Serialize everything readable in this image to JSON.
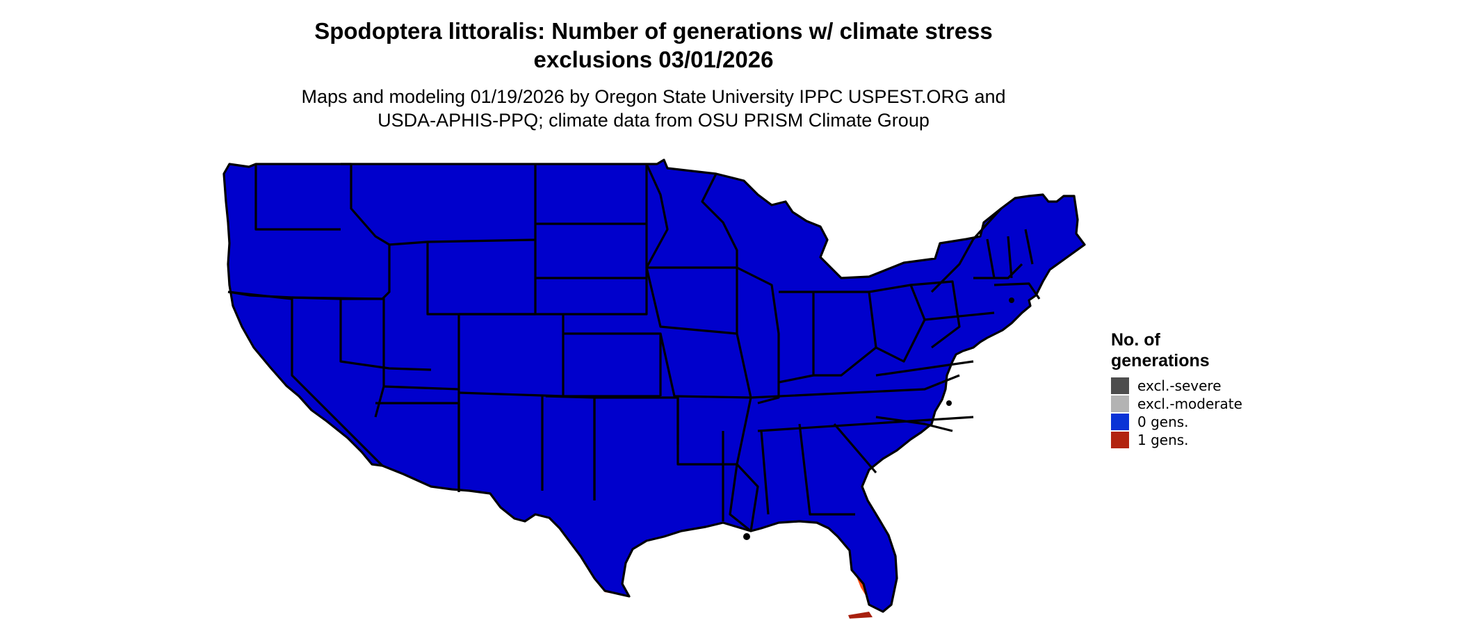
{
  "header": {
    "title_line1": "Spodoptera littoralis: Number of generations w/ climate stress",
    "title_line2": "exclusions 03/01/2026",
    "subtitle_line1": "Maps and modeling 01/19/2026 by Oregon State University IPPC USPEST.ORG and",
    "subtitle_line2": "USDA-APHIS-PPQ; climate data from OSU PRISM Climate Group"
  },
  "legend": {
    "title_line1": "No. of",
    "title_line2": "generations",
    "items": [
      {
        "label": "excl.-severe",
        "color": "#4d4d4d"
      },
      {
        "label": "excl.-moderate",
        "color": "#b3b3b3"
      },
      {
        "label": "0 gens.",
        "color": "#0a33d6"
      },
      {
        "label": "1 gens.",
        "color": "#b22410"
      }
    ]
  },
  "map_colors": {
    "zero_gens": "#0000cc",
    "excl_moderate": "#b3b3b3",
    "one_gens_light": "#ff4a10",
    "one_gens_dark": "#a8200e",
    "border": "#000000"
  }
}
